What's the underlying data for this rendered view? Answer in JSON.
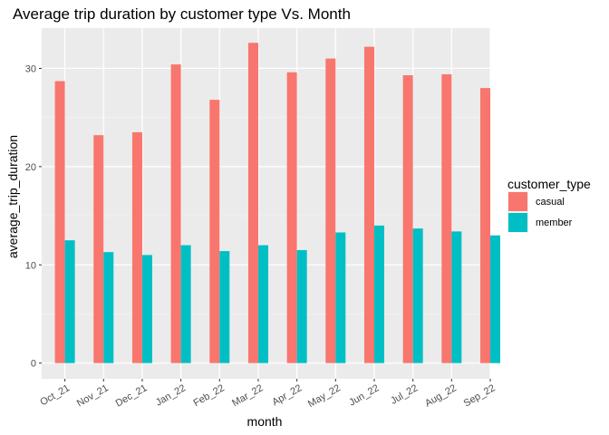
{
  "chart_data": {
    "type": "bar",
    "title": "Average trip duration by customer type Vs. Month",
    "xlabel": "month",
    "ylabel": "average_trip_duration",
    "categories": [
      "Oct_21",
      "Nov_21",
      "Dec_21",
      "Jan_22",
      "Feb_22",
      "Mar_22",
      "Apr_22",
      "May_22",
      "Jun_22",
      "Jul_22",
      "Aug_22",
      "Sep_22"
    ],
    "series": [
      {
        "name": "casual",
        "color": "#F8766D",
        "values": [
          28.7,
          23.2,
          23.5,
          30.4,
          26.8,
          32.6,
          29.6,
          31.0,
          32.2,
          29.3,
          29.4,
          28.0
        ]
      },
      {
        "name": "member",
        "color": "#00BFC4",
        "values": [
          12.5,
          11.3,
          11.0,
          12.0,
          11.4,
          12.0,
          11.5,
          13.3,
          14.0,
          13.7,
          13.4,
          13.0
        ]
      }
    ],
    "yticks": [
      0,
      10,
      20,
      30
    ],
    "ylim": [
      -1.6,
      34.1
    ],
    "grid": true,
    "legend": {
      "title": "customer_type",
      "position": "right"
    }
  }
}
